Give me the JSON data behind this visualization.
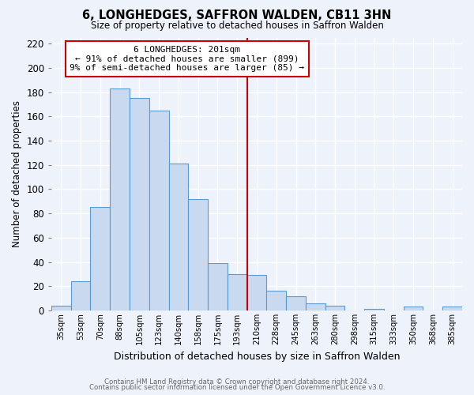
{
  "title": "6, LONGHEDGES, SAFFRON WALDEN, CB11 3HN",
  "subtitle": "Size of property relative to detached houses in Saffron Walden",
  "xlabel": "Distribution of detached houses by size in Saffron Walden",
  "ylabel": "Number of detached properties",
  "bar_labels": [
    "35sqm",
    "53sqm",
    "70sqm",
    "88sqm",
    "105sqm",
    "123sqm",
    "140sqm",
    "158sqm",
    "175sqm",
    "193sqm",
    "210sqm",
    "228sqm",
    "245sqm",
    "263sqm",
    "280sqm",
    "298sqm",
    "315sqm",
    "333sqm",
    "350sqm",
    "368sqm",
    "385sqm"
  ],
  "bar_values": [
    4,
    24,
    85,
    183,
    175,
    165,
    121,
    92,
    39,
    30,
    29,
    16,
    12,
    6,
    4,
    0,
    1,
    0,
    3,
    0,
    3
  ],
  "bar_color": "#c9d9f0",
  "bar_edge_color": "#5b9bd5",
  "ylim": [
    0,
    225
  ],
  "yticks": [
    0,
    20,
    40,
    60,
    80,
    100,
    120,
    140,
    160,
    180,
    200,
    220
  ],
  "vline_x": 9.5,
  "vline_color": "#cc0000",
  "annotation_title": "6 LONGHEDGES: 201sqm",
  "annotation_line1": "← 91% of detached houses are smaller (899)",
  "annotation_line2": "9% of semi-detached houses are larger (85) →",
  "footer_line1": "Contains HM Land Registry data © Crown copyright and database right 2024.",
  "footer_line2": "Contains public sector information licensed under the Open Government Licence v3.0.",
  "background_color": "#eef2fb",
  "grid_color": "#d8e0f0"
}
